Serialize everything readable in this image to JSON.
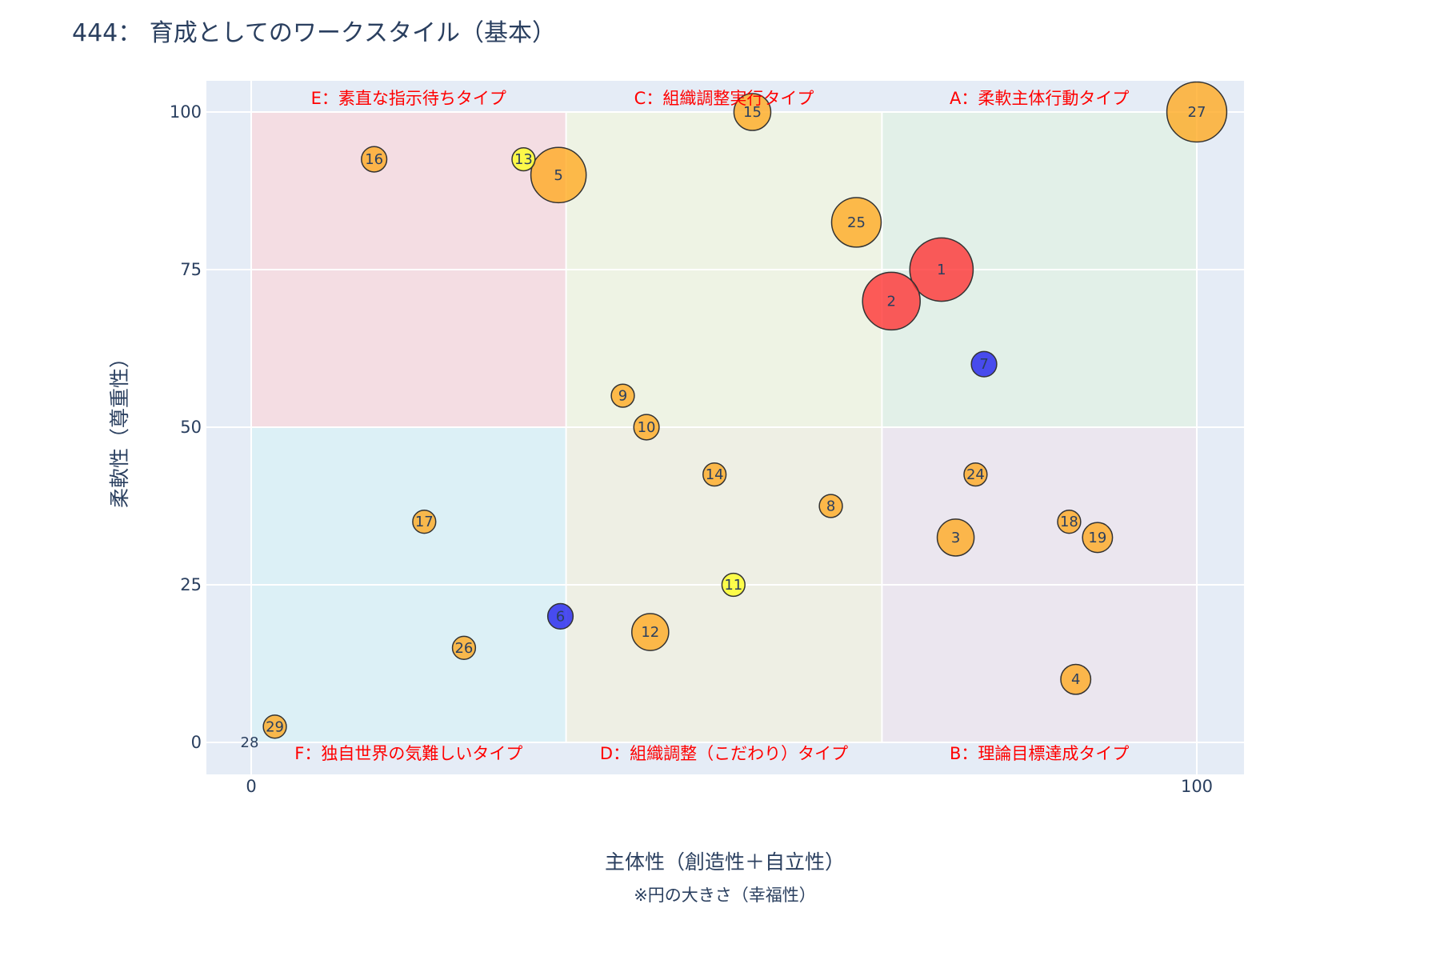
{
  "title": "444： 育成としてのワークスタイル（基本）",
  "chart_data": {
    "type": "scatter",
    "xlabel": "主体性（創造性＋自立性）",
    "ylabel": "柔軟性（尊重性）",
    "note": "※円の大きさ（幸福性）",
    "xlim": [
      -5,
      105
    ],
    "ylim": [
      -5,
      105
    ],
    "xticks": [
      0,
      100
    ],
    "yticks": [
      0,
      25,
      50,
      75,
      100
    ],
    "grid": true,
    "quadrants": [
      {
        "x": [
          0,
          33.3
        ],
        "y": [
          50,
          100
        ],
        "color": "#f4dde3",
        "label": "E：素直な指示待ちタイプ",
        "label_pos": "top"
      },
      {
        "x": [
          33.3,
          66.7
        ],
        "y": [
          50,
          100
        ],
        "color": "#eef3e4",
        "label": "C：組織調整実行タイプ",
        "label_pos": "top"
      },
      {
        "x": [
          66.7,
          100
        ],
        "y": [
          50,
          100
        ],
        "color": "#e2f0e8",
        "label": "A：柔軟主体行動タイプ",
        "label_pos": "top"
      },
      {
        "x": [
          0,
          33.3
        ],
        "y": [
          0,
          50
        ],
        "color": "#dcf0f6",
        "label": "F：独自世界の気難しいタイプ",
        "label_pos": "bottom"
      },
      {
        "x": [
          33.3,
          66.7
        ],
        "y": [
          0,
          50
        ],
        "color": "#eeefe4",
        "label": "D：組織調整（こだわり）タイプ",
        "label_pos": "bottom"
      },
      {
        "x": [
          66.7,
          100
        ],
        "y": [
          0,
          50
        ],
        "color": "#ebe6ef",
        "label": "B：理論目標達成タイプ",
        "label_pos": "bottom"
      }
    ],
    "points": [
      {
        "label": "1",
        "x": 73,
        "y": 75,
        "size": 5.5,
        "color": "#ff3333"
      },
      {
        "label": "2",
        "x": 67.7,
        "y": 70,
        "size": 5,
        "color": "#ff3333"
      },
      {
        "label": "3",
        "x": 74.5,
        "y": 32.5,
        "size": 3.2,
        "color": "#ffaa22"
      },
      {
        "label": "4",
        "x": 87.2,
        "y": 10,
        "size": 2.6,
        "color": "#ffaa22"
      },
      {
        "label": "5",
        "x": 32.5,
        "y": 90,
        "size": 4.8,
        "color": "#ffaa22"
      },
      {
        "label": "6",
        "x": 32.7,
        "y": 20,
        "size": 2.2,
        "color": "#2222ee"
      },
      {
        "label": "7",
        "x": 77.5,
        "y": 60,
        "size": 2.2,
        "color": "#2222ee"
      },
      {
        "label": "8",
        "x": 61.3,
        "y": 37.5,
        "size": 2,
        "color": "#ffaa22"
      },
      {
        "label": "9",
        "x": 39.3,
        "y": 55,
        "size": 2,
        "color": "#ffaa22"
      },
      {
        "label": "10",
        "x": 41.8,
        "y": 50,
        "size": 2.2,
        "color": "#ffaa22"
      },
      {
        "label": "11",
        "x": 51,
        "y": 25,
        "size": 2,
        "color": "#ffff22"
      },
      {
        "label": "12",
        "x": 42.2,
        "y": 17.5,
        "size": 3.2,
        "color": "#ffaa22"
      },
      {
        "label": "13",
        "x": 28.8,
        "y": 92.5,
        "size": 2,
        "color": "#ffff22"
      },
      {
        "label": "14",
        "x": 49,
        "y": 42.5,
        "size": 2,
        "color": "#ffaa22"
      },
      {
        "label": "15",
        "x": 53,
        "y": 100,
        "size": 3.2,
        "color": "#ffaa22"
      },
      {
        "label": "16",
        "x": 13,
        "y": 92.5,
        "size": 2.2,
        "color": "#ffaa22"
      },
      {
        "label": "17",
        "x": 18.3,
        "y": 35,
        "size": 2,
        "color": "#ffaa22"
      },
      {
        "label": "18",
        "x": 86.5,
        "y": 35,
        "size": 2,
        "color": "#ffaa22"
      },
      {
        "label": "19",
        "x": 89.5,
        "y": 32.5,
        "size": 2.6,
        "color": "#ffaa22"
      },
      {
        "label": "24",
        "x": 76.6,
        "y": 42.5,
        "size": 2,
        "color": "#ffaa22"
      },
      {
        "label": "25",
        "x": 64,
        "y": 82.5,
        "size": 4.3,
        "color": "#ffaa22"
      },
      {
        "label": "26",
        "x": 22.5,
        "y": 15,
        "size": 2,
        "color": "#ffaa22"
      },
      {
        "label": "27",
        "x": 100,
        "y": 100,
        "size": 5.2,
        "color": "#ffaa22"
      },
      {
        "label": "28",
        "x": 0,
        "y": 0,
        "size": 0,
        "color": "#ffaa22"
      },
      {
        "label": "29",
        "x": 2.5,
        "y": 2.5,
        "size": 2,
        "color": "#ffaa22"
      }
    ]
  }
}
